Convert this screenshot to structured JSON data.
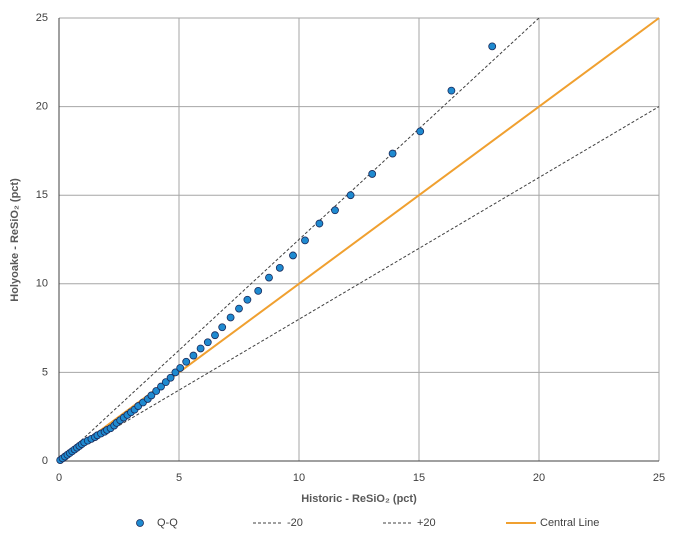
{
  "chart_data": {
    "type": "scatter",
    "xlabel": "Historic - ReSiO₂ (pct)",
    "ylabel": "Holyoake - ReSiO₂ (pct)",
    "xlim": [
      0,
      25
    ],
    "ylim": [
      0,
      25
    ],
    "xticks": [
      0,
      5,
      10,
      15,
      20,
      25
    ],
    "yticks": [
      0,
      5,
      10,
      15,
      20,
      25
    ],
    "grid": true,
    "legend": "bottom",
    "series": [
      {
        "name": "Q-Q",
        "mode": "markers",
        "color": "#1f8ad0",
        "edgecolor": "#1a2a5a",
        "x": [
          0.05,
          0.15,
          0.25,
          0.35,
          0.45,
          0.55,
          0.65,
          0.75,
          0.85,
          0.95,
          1.05,
          1.2,
          1.35,
          1.5,
          1.6,
          1.75,
          1.9,
          2.0,
          2.15,
          2.3,
          2.4,
          2.55,
          2.7,
          2.85,
          3.0,
          3.15,
          3.3,
          3.5,
          3.7,
          3.85,
          4.05,
          4.25,
          4.45,
          4.65,
          4.85,
          5.05,
          5.3,
          5.6,
          5.9,
          6.2,
          6.5,
          6.8,
          7.15,
          7.5,
          7.85,
          8.3,
          8.75,
          9.2,
          9.75,
          10.25,
          10.85,
          11.5,
          12.15,
          13.05,
          13.9,
          15.05,
          16.35,
          18.05
        ],
        "y": [
          0.05,
          0.15,
          0.25,
          0.35,
          0.45,
          0.55,
          0.65,
          0.75,
          0.85,
          0.95,
          1.05,
          1.15,
          1.25,
          1.35,
          1.45,
          1.55,
          1.65,
          1.75,
          1.85,
          2.0,
          2.15,
          2.3,
          2.45,
          2.6,
          2.75,
          2.9,
          3.1,
          3.3,
          3.5,
          3.7,
          3.95,
          4.2,
          4.45,
          4.7,
          5.0,
          5.25,
          5.6,
          5.95,
          6.35,
          6.7,
          7.1,
          7.55,
          8.1,
          8.6,
          9.1,
          9.6,
          10.35,
          10.9,
          11.6,
          12.45,
          13.4,
          14.15,
          15.0,
          16.2,
          17.35,
          18.6,
          20.9,
          23.4
        ]
      },
      {
        "name": "-20",
        "mode": "line",
        "dash": true,
        "color": "#404040",
        "x": [
          0,
          20
        ],
        "y": [
          0,
          25
        ]
      },
      {
        "name": "+20",
        "mode": "line",
        "dash": true,
        "color": "#404040",
        "x": [
          0,
          25
        ],
        "y": [
          0,
          20
        ]
      },
      {
        "name": "Central Line",
        "mode": "line",
        "dash": false,
        "color": "#f0a030",
        "x": [
          0,
          25
        ],
        "y": [
          0,
          25
        ]
      }
    ]
  }
}
